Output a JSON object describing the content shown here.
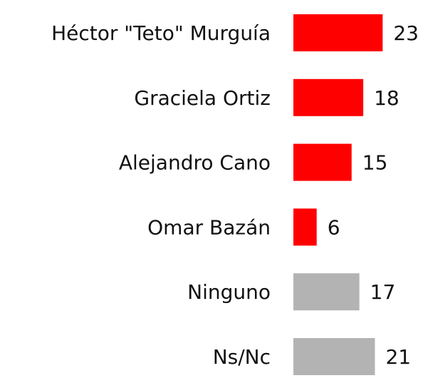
{
  "chart_data": {
    "type": "bar",
    "orientation": "horizontal",
    "categories": [
      "Héctor \"Teto\" Murguía",
      "Graciela Ortiz",
      "Alejandro Cano",
      "Omar Bazán",
      "Ninguno",
      "Ns/Nc"
    ],
    "values": [
      23,
      18,
      15,
      6,
      17,
      21
    ],
    "colors": [
      "#ff0000",
      "#ff0000",
      "#ff0000",
      "#ff0000",
      "#b3b3b3",
      "#b3b3b3"
    ]
  }
}
